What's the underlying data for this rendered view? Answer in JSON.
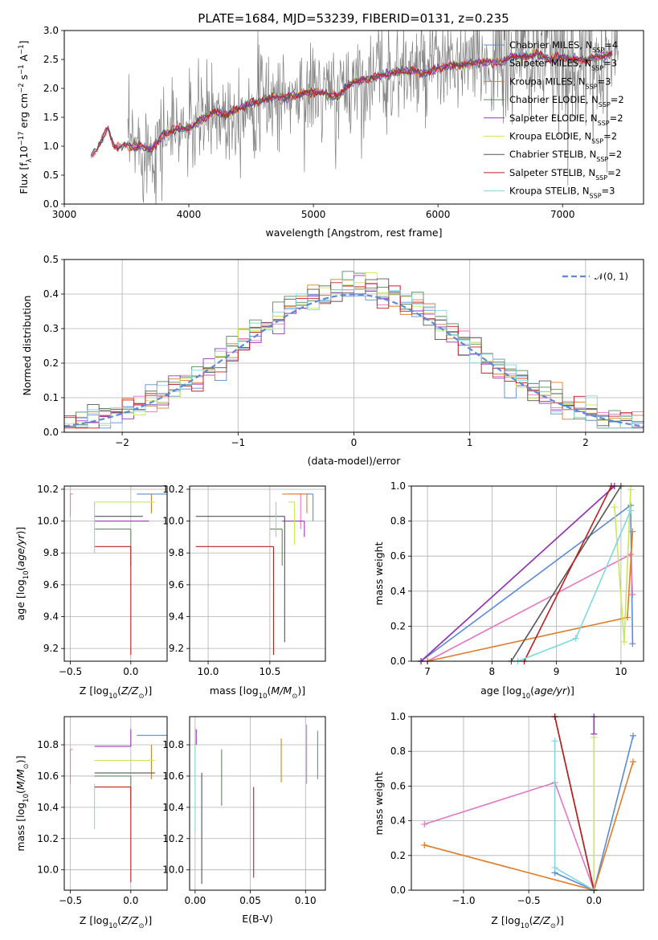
{
  "figure_title": "PLATE=1684, MJD=53239, FIBERID=0131, z=0.235",
  "colors": {
    "chabrier_miles": "#5b8bd6",
    "salpeter_miles": "#e377c2",
    "kroupa_miles": "#e07b28",
    "chabrier_elodie": "#5a8a5a",
    "salpeter_elodie": "#9933bb",
    "kroupa_elodie": "#c8e85a",
    "chabrier_stelib": "#555555",
    "salpeter_stelib": "#c21d1d",
    "kroupa_stelib": "#7fd8e0",
    "data": "#808080",
    "normal": "#5b8bd6"
  },
  "chart_data": [
    {
      "type": "line",
      "id": "spectrum",
      "xlabel": "wavelength [Angstrom, rest frame]",
      "ylabel": "Flux [f",
      "ylabel_html": "Flux [f_λ 10^-17 erg cm^-2 s^-1 A^-1]",
      "xlim": [
        3000,
        7650
      ],
      "ylim": [
        0,
        3.0
      ],
      "xticks": [
        3000,
        4000,
        5000,
        6000,
        7000
      ],
      "yticks": [
        "0.0",
        "0.5",
        "1.0",
        "1.5",
        "2.0",
        "2.5",
        "3.0"
      ],
      "continuum": [
        [
          3210,
          0.8
        ],
        [
          3300,
          1.1
        ],
        [
          3350,
          1.3
        ],
        [
          3400,
          1.0
        ],
        [
          3500,
          1.0
        ],
        [
          3600,
          1.0
        ],
        [
          3700,
          0.95
        ],
        [
          3800,
          1.2
        ],
        [
          3900,
          1.3
        ],
        [
          4000,
          1.3
        ],
        [
          4100,
          1.45
        ],
        [
          4200,
          1.6
        ],
        [
          4300,
          1.55
        ],
        [
          4400,
          1.65
        ],
        [
          4500,
          1.75
        ],
        [
          4600,
          1.8
        ],
        [
          4700,
          1.85
        ],
        [
          4800,
          1.85
        ],
        [
          4900,
          1.9
        ],
        [
          5000,
          1.95
        ],
        [
          5100,
          1.9
        ],
        [
          5200,
          1.85
        ],
        [
          5300,
          2.1
        ],
        [
          5400,
          2.15
        ],
        [
          5500,
          2.2
        ],
        [
          5600,
          2.25
        ],
        [
          5700,
          2.3
        ],
        [
          5800,
          2.3
        ],
        [
          5900,
          2.25
        ],
        [
          6000,
          2.35
        ],
        [
          6100,
          2.4
        ],
        [
          6200,
          2.4
        ],
        [
          6300,
          2.45
        ],
        [
          6400,
          2.45
        ],
        [
          6500,
          2.45
        ],
        [
          6600,
          2.55
        ],
        [
          6700,
          2.55
        ],
        [
          6800,
          2.6
        ],
        [
          6900,
          2.5
        ],
        [
          7000,
          2.55
        ],
        [
          7100,
          2.5
        ],
        [
          7200,
          2.5
        ],
        [
          7300,
          2.55
        ],
        [
          7400,
          2.6
        ]
      ],
      "legend": [
        {
          "name": "Chabrier MILES, N",
          "n": "4"
        },
        {
          "name": "Salpeter MILES, N",
          "n": "3"
        },
        {
          "name": "Kroupa MILES, N",
          "n": "3"
        },
        {
          "name": "Chabrier ELODIE, N",
          "n": "2"
        },
        {
          "name": "Salpeter ELODIE, N",
          "n": "2"
        },
        {
          "name": "Kroupa ELODIE, N",
          "n": "2"
        },
        {
          "name": "Chabrier STELIB, N",
          "n": "2"
        },
        {
          "name": "Salpeter STELIB, N",
          "n": "2"
        },
        {
          "name": "Kroupa STELIB, N",
          "n": "3"
        }
      ],
      "legend_sub": "SSP",
      "legend_eq": "="
    },
    {
      "type": "line",
      "id": "residuals",
      "xlabel": "(data-model)/error",
      "ylabel": "Normed distribution",
      "xlim": [
        -2.5,
        2.5
      ],
      "ylim": [
        0,
        0.5
      ],
      "xticks": [
        "−2",
        "−1",
        "0",
        "1",
        "2"
      ],
      "xtick_values": [
        -2,
        -1,
        0,
        1,
        2
      ],
      "yticks": [
        "0.0",
        "0.1",
        "0.2",
        "0.3",
        "0.4",
        "0.5"
      ],
      "normal_label": "𝒩(0, 1)",
      "hist_bins": 50
    },
    {
      "type": "scatter",
      "id": "age_vs_Z",
      "xlabel": "Z [log",
      "xlabel_full": "Z [log10(Z/Z⊙)]",
      "ylabel": "age  [log10(age/yr)]",
      "xlim": [
        -0.55,
        0.3
      ],
      "ylim": [
        9.12,
        10.22
      ],
      "xticks": [
        "−0.5",
        "0.0"
      ],
      "xtick_values": [
        -0.5,
        0.0
      ],
      "yticks": [
        "9.2",
        "9.4",
        "9.6",
        "9.8",
        "10.0",
        "10.2"
      ],
      "ytick_values": [
        9.2,
        9.4,
        9.6,
        9.8,
        10.0,
        10.2
      ]
    },
    {
      "type": "scatter",
      "id": "age_vs_mass",
      "xlabel_full": "mass [log10(M/M⊙)]",
      "xlim": [
        9.85,
        10.95
      ],
      "ylim": [
        9.12,
        10.22
      ],
      "xticks": [
        "10.0",
        "10.5"
      ],
      "xtick_values": [
        10.0,
        10.5
      ],
      "yticks": [
        "9.2",
        "9.4",
        "9.6",
        "9.8",
        "10.0",
        "10.2"
      ]
    },
    {
      "type": "line",
      "id": "massweight_vs_age",
      "xlabel_full": "age  [log10(age/yr)]",
      "ylabel": "mass weight",
      "xlim": [
        6.75,
        10.35
      ],
      "ylim": [
        0,
        1.0
      ],
      "xticks": [
        "7",
        "8",
        "9",
        "10"
      ],
      "xtick_values": [
        7,
        8,
        9,
        10
      ],
      "yticks": [
        "0.0",
        "0.2",
        "0.4",
        "0.6",
        "0.8",
        "1.0"
      ]
    },
    {
      "type": "scatter",
      "id": "mass_vs_Z",
      "xlabel_full": "Z [log10(Z/Z⊙)]",
      "ylabel": "mass [log10(M/M⊙)]",
      "xlim": [
        -0.55,
        0.3
      ],
      "ylim": [
        9.87,
        10.98
      ],
      "xticks": [
        "−0.5",
        "0.0"
      ],
      "xtick_values": [
        -0.5,
        0.0
      ],
      "yticks": [
        "10.0",
        "10.2",
        "10.4",
        "10.6",
        "10.8"
      ],
      "ytick_values": [
        10.0,
        10.2,
        10.4,
        10.6,
        10.8
      ]
    },
    {
      "type": "scatter",
      "id": "mass_vs_ebv",
      "xlabel": "E(B-V)",
      "xlim": [
        -0.005,
        0.118
      ],
      "ylim": [
        9.87,
        10.98
      ],
      "xticks": [
        "0.00",
        "0.05",
        "0.10"
      ],
      "xtick_values": [
        0.0,
        0.05,
        0.1
      ],
      "yticks": [
        "10.0",
        "10.2",
        "10.4",
        "10.6",
        "10.8"
      ]
    },
    {
      "type": "line",
      "id": "massweight_vs_Z",
      "xlabel_full": "Z [log10(Z/Z⊙)]",
      "ylabel": "mass weight",
      "xlim": [
        -1.4,
        0.38
      ],
      "ylim": [
        0,
        1.0
      ],
      "xticks": [
        "−1.0",
        "−0.5",
        "0.0"
      ],
      "xtick_values": [
        -1.0,
        -0.5,
        0.0
      ],
      "yticks": [
        "0.0",
        "0.2",
        "0.4",
        "0.6",
        "0.8",
        "1.0"
      ]
    }
  ]
}
